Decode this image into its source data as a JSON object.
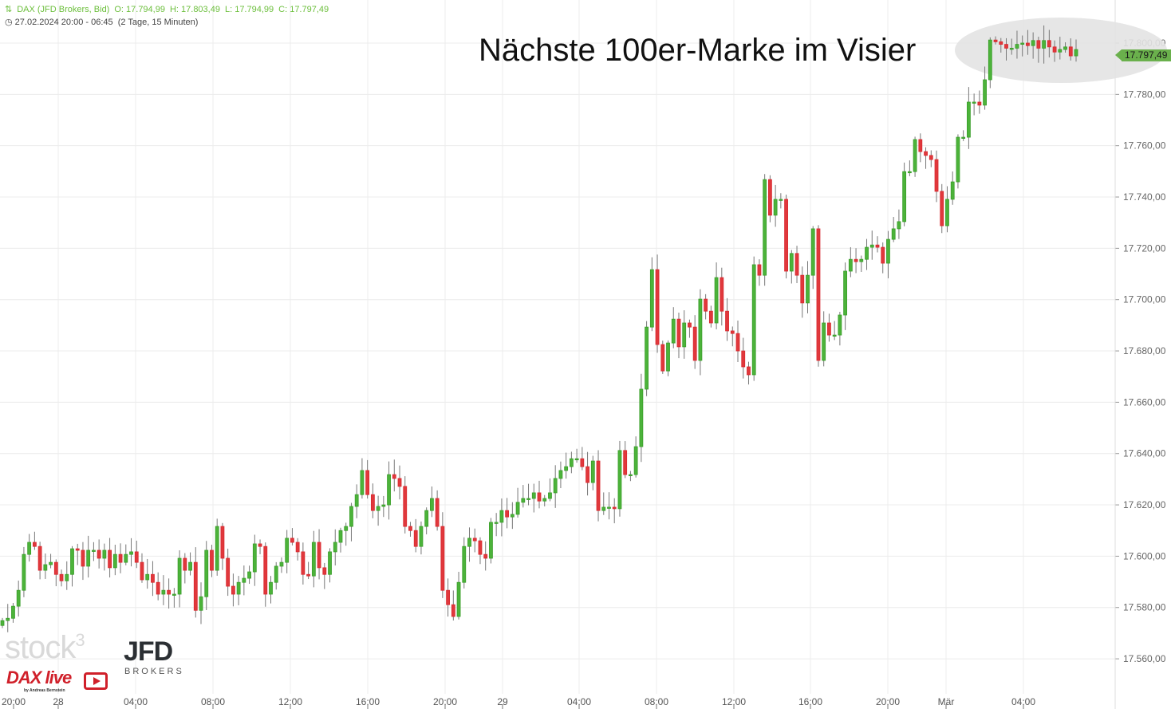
{
  "header": {
    "instrument": "DAX (JFD Brokers, Bid)",
    "open": "O: 17.794,99",
    "high": "H: 17.803,49",
    "low": "L: 17.794,99",
    "close": "C: 17.797,49",
    "range": "27.02.2024 20:00 - 06:45",
    "duration": "(2 Tage, 15 Minuten)",
    "icon": "candlestick-icon",
    "clock_icon": "clock-icon"
  },
  "annotation": "Nächste 100er-Marke im Visier",
  "last_price_tag": "17.797,49",
  "logos": {
    "stock3": "stock3",
    "jfd": "JFD",
    "jfd_sub": "BROKERS",
    "dax_live": "DAX live",
    "dax_live_sub": "by Andreas Bernstein"
  },
  "colors": {
    "up": "#3a9e2a",
    "down": "#d9282e",
    "wick": "#777777",
    "grid": "#ececec",
    "accent": "#6ab04c"
  },
  "chart_data": {
    "type": "candlestick",
    "title": "Nächste 100er-Marke im Visier",
    "interval": "15 Minuten",
    "ylim": [
      17545,
      17820
    ],
    "y_ticks": [
      17560,
      17580,
      17600,
      17620,
      17640,
      17660,
      17680,
      17700,
      17720,
      17740,
      17760,
      17780,
      17800
    ],
    "y_tick_labels": [
      "17.560,00",
      "17.580,00",
      "17.600,00",
      "17.620,00",
      "17.640,00",
      "17.660,00",
      "17.680,00",
      "17.700,00",
      "17.720,00",
      "17.740,00",
      "17.760,00",
      "17.780,00",
      "17.800,00"
    ],
    "x_tick_labels": [
      "20:00",
      "28",
      "04:00",
      "08:00",
      "12:00",
      "16:00",
      "20:00",
      "29",
      "04:00",
      "08:00",
      "12:00",
      "16:00",
      "20:00",
      "Mär",
      "04:00"
    ],
    "grid": true,
    "first_open": 17573,
    "closes": [
      17574.9,
      17575.8,
      17580.5,
      17586.7,
      17600.7,
      17605.4,
      17603.8,
      17594.5,
      17596.7,
      17597.6,
      17592.9,
      17590.4,
      17592.9,
      17602.9,
      17602.3,
      17596.1,
      17602.3,
      17602.3,
      17599.2,
      17602.3,
      17595.5,
      17600.7,
      17597.6,
      17600.7,
      17601.7,
      17597.6,
      17590.8,
      17592.9,
      17589.8,
      17585.2,
      17586.7,
      17585.2,
      17585.2,
      17599.2,
      17594.5,
      17597.6,
      17578.9,
      17584.2,
      17602.3,
      17594.5,
      17611.6,
      17599.2,
      17588.3,
      17585.2,
      17589.8,
      17591.4,
      17593.9,
      17604.8,
      17603.8,
      17585.2,
      17589.8,
      17596.1,
      17597.6,
      17607.0,
      17605.4,
      17601.7,
      17592.9,
      17592.3,
      17605.4,
      17595.5,
      17592.9,
      17601.7,
      17605.4,
      17610.0,
      17611.6,
      17619.4,
      17624.0,
      17633.4,
      17624.0,
      17617.8,
      17619.4,
      17620.0,
      17631.8,
      17630.3,
      17627.2,
      17611.6,
      17610.0,
      17603.8,
      17611.6,
      17617.8,
      17622.5,
      17611.6,
      17586.7,
      17581.1,
      17576.5,
      17589.8,
      17603.8,
      17607.0,
      17606.0,
      17600.7,
      17599.2,
      17613.2,
      17613.2,
      17617.8,
      17615.3,
      17616.3,
      17621.0,
      17622.5,
      17622.5,
      17624.7,
      17621.5,
      17622.5,
      17624.7,
      17630.3,
      17633.4,
      17634.9,
      17638.0,
      17638.0,
      17634.9,
      17628.7,
      17637.1,
      17617.8,
      17619.1,
      17619.1,
      17618.5,
      17641.2,
      17631.8,
      17631.8,
      17642.7,
      17665.1,
      17689.3,
      17711.7,
      17682.5,
      17672.2,
      17683.1,
      17692.4,
      17681.6,
      17690.9,
      17689.3,
      17676.3,
      17700.2,
      17695.5,
      17690.9,
      17708.6,
      17695.5,
      17687.8,
      17686.8,
      17680.0,
      17673.8,
      17670.7,
      17713.6,
      17709.5,
      17746.8,
      17732.9,
      17739.1,
      17739.1,
      17711.1,
      17718.0,
      17709.5,
      17698.7,
      17709.5,
      17727.6,
      17676.3,
      17690.9,
      17686.2,
      17686.2,
      17694.0,
      17711.1,
      17715.7,
      17714.8,
      17715.7,
      17720.4,
      17721.3,
      17720.4,
      17714.2,
      17723.5,
      17727.6,
      17730.4,
      17749.9,
      17749.9,
      17762.4,
      17757.7,
      17756.2,
      17754.6,
      17742.2,
      17728.8,
      17739.1,
      17745.9,
      17763.3,
      17763.3,
      17777.0,
      17777.0,
      17775.8,
      17785.7,
      17801.2,
      17800.5,
      17799.5,
      17798.0,
      17798.0,
      17799.5,
      17800.0,
      17799.0,
      17801.0,
      17798.0,
      17801.0,
      17798.5,
      17796.5,
      17797.5,
      17798.5,
      17795.0,
      17797.49
    ]
  }
}
